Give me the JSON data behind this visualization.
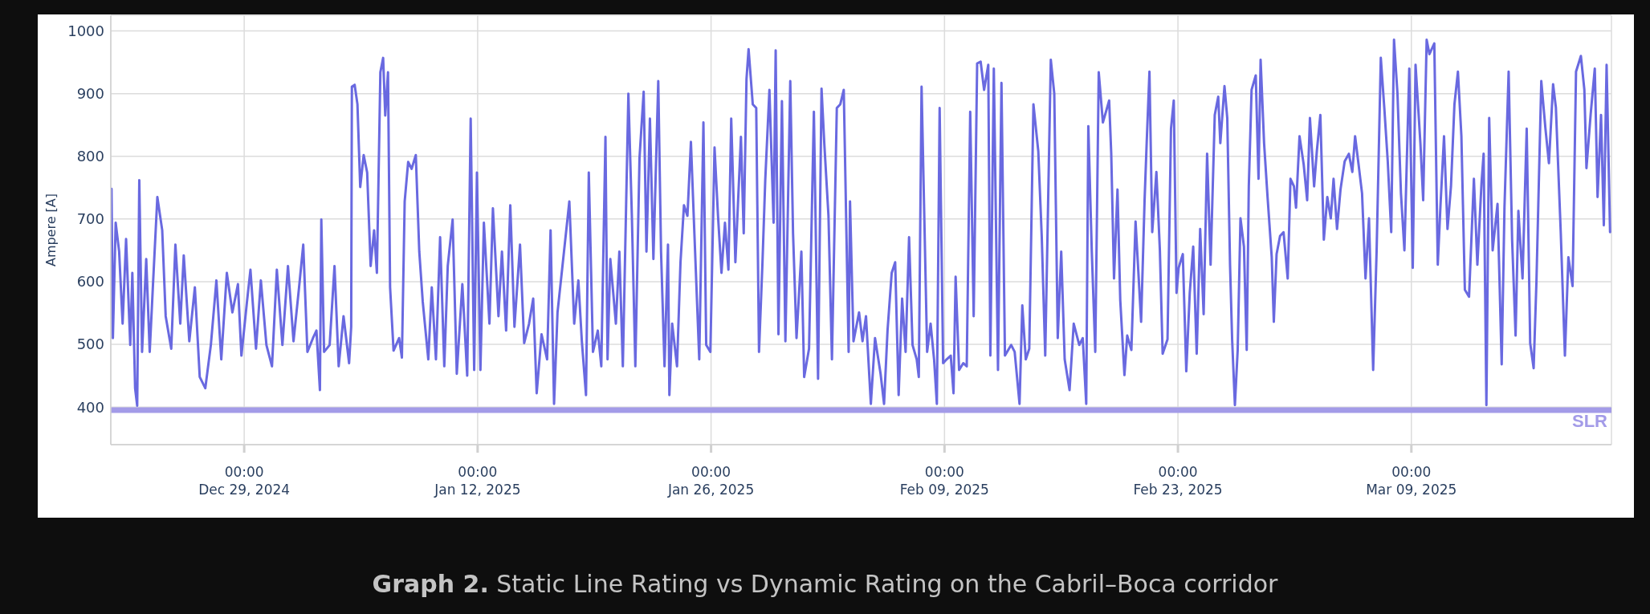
{
  "chart_data": {
    "type": "line",
    "ylabel": "Ampere [A]",
    "color": "#6969e0",
    "line_style": "solid",
    "marker": "none",
    "grid": true,
    "xlim": [
      "2024-12-21",
      "2025-03-21"
    ],
    "xticks": [
      {
        "value": "2024-12-29",
        "label": "00:00\nDec 29, 2024"
      },
      {
        "value": "2025-01-12",
        "label": "00:00\nJan 12, 2025"
      },
      {
        "value": "2025-01-26",
        "label": "00:00\nJan 26, 2025"
      },
      {
        "value": "2025-02-09",
        "label": "00:00\nFeb 09, 2025"
      },
      {
        "value": "2025-02-23",
        "label": "00:00\nFeb 23, 2025"
      },
      {
        "value": "2025-03-09",
        "label": "00:00\nMar 09, 2025"
      }
    ],
    "ylim": [
      340,
      1025
    ],
    "yticks": [
      400,
      500,
      600,
      700,
      800,
      900,
      1000
    ],
    "ref_lines": [
      {
        "axis": "y",
        "value": 395,
        "label": "SLR",
        "color": "#a39be8"
      }
    ],
    "annotations": [
      "Graph 2. Static Line Rating vs Dynamic Rating on the Cabril–Boca corridor"
    ],
    "x": [
      "2024-12-21T01:00",
      "2024-12-21T03:00",
      "2024-12-21T07:00",
      "2024-12-21T12:00",
      "2024-12-21T17:00",
      "2024-12-21T22:00",
      "2024-12-22T04:00",
      "2024-12-22T07:00",
      "2024-12-22T11:00",
      "2024-12-22T14:00",
      "2024-12-22T17:00",
      "2024-12-22T21:00",
      "2024-12-23T03:00",
      "2024-12-23T08:00",
      "2024-12-23T13:00",
      "2024-12-23T19:00",
      "2024-12-24T02:00",
      "2024-12-24T07:00",
      "2024-12-24T15:00",
      "2024-12-24T21:00",
      "2024-12-25T04:00",
      "2024-12-25T09:00",
      "2024-12-25T17:00",
      "2024-12-26T01:00",
      "2024-12-26T08:00",
      "2024-12-26T16:00",
      "2024-12-27T00:00",
      "2024-12-27T08:00",
      "2024-12-27T15:00",
      "2024-12-27T23:00",
      "2024-12-28T07:00",
      "2024-12-28T15:00",
      "2024-12-28T20:00",
      "2024-12-29T04:00",
      "2024-12-29T09:00",
      "2024-12-29T17:00",
      "2024-12-30T00:00",
      "2024-12-30T08:00",
      "2024-12-30T16:00",
      "2024-12-30T23:00",
      "2024-12-31T07:00",
      "2024-12-31T15:00",
      "2024-12-31T23:00",
      "2025-01-01T07:00",
      "2025-01-01T13:00",
      "2025-01-01T19:00",
      "2025-01-02T03:00",
      "2025-01-02T08:00",
      "2025-01-02T13:00",
      "2025-01-02T15:00",
      "2025-01-02T19:00",
      "2025-01-03T03:00",
      "2025-01-03T10:00",
      "2025-01-03T16:00",
      "2025-01-03T23:00",
      "2025-01-04T07:00",
      "2025-01-04T10:00",
      "2025-01-04T11:00",
      "2025-01-04T15:00",
      "2025-01-04T19:00",
      "2025-01-04T23:00",
      "2025-01-05T04:00",
      "2025-01-05T09:00",
      "2025-01-05T14:00",
      "2025-01-05T19:00",
      "2025-01-05T23:00",
      "2025-01-06T04:00",
      "2025-01-06T08:00",
      "2025-01-06T11:00",
      "2025-01-06T15:00",
      "2025-01-06T18:00",
      "2025-01-06T23:00",
      "2025-01-07T07:00",
      "2025-01-07T11:00",
      "2025-01-07T15:00",
      "2025-01-07T20:00",
      "2025-01-08T01:00",
      "2025-01-08T07:00",
      "2025-01-08T12:00",
      "2025-01-08T17:00",
      "2025-01-09T01:00",
      "2025-01-09T06:00",
      "2025-01-09T12:00",
      "2025-01-09T18:00",
      "2025-01-10T00:00",
      "2025-01-10T05:00",
      "2025-01-10T12:00",
      "2025-01-10T18:00",
      "2025-01-11T02:00",
      "2025-01-11T09:00",
      "2025-01-11T14:00",
      "2025-01-11T19:00",
      "2025-01-11T23:00",
      "2025-01-12T04:00",
      "2025-01-12T09:00",
      "2025-01-12T17:00",
      "2025-01-12T22:00",
      "2025-01-13T06:00",
      "2025-01-13T11:00",
      "2025-01-13T17:00",
      "2025-01-13T23:00",
      "2025-01-14T05:00",
      "2025-01-14T13:00",
      "2025-01-14T19:00",
      "2025-01-15T02:00",
      "2025-01-15T08:00",
      "2025-01-15T13:00",
      "2025-01-15T20:00",
      "2025-01-16T04:00",
      "2025-01-16T09:00",
      "2025-01-16T14:00",
      "2025-01-16T19:00",
      "2025-01-17T12:00",
      "2025-01-17T19:00",
      "2025-01-18T01:00",
      "2025-01-18T06:00",
      "2025-01-18T12:00",
      "2025-01-18T16:00",
      "2025-01-18T22:00",
      "2025-01-19T05:00",
      "2025-01-19T10:00",
      "2025-01-19T16:00",
      "2025-01-19T19:00",
      "2025-01-19T23:00",
      "2025-01-20T07:00",
      "2025-01-20T12:00",
      "2025-01-20T17:00",
      "2025-01-21T01:00",
      "2025-01-21T06:00",
      "2025-01-21T11:00",
      "2025-01-21T17:00",
      "2025-01-21T23:00",
      "2025-01-22T03:00",
      "2025-01-22T08:00",
      "2025-01-22T13:00",
      "2025-01-22T20:00",
      "2025-01-23T00:00",
      "2025-01-23T05:00",
      "2025-01-23T10:00",
      "2025-01-23T12:00",
      "2025-01-23T16:00",
      "2025-01-23T23:00",
      "2025-01-24T04:00",
      "2025-01-24T09:00",
      "2025-01-24T14:00",
      "2025-01-24T19:00",
      "2025-01-25T00:00",
      "2025-01-25T07:00",
      "2025-01-25T13:00",
      "2025-01-25T17:00",
      "2025-01-25T23:00",
      "2025-01-26T05:00",
      "2025-01-26T10:00",
      "2025-01-26T15:00",
      "2025-01-26T20:00",
      "2025-01-27T01:00",
      "2025-01-27T05:00",
      "2025-01-27T11:00",
      "2025-01-27T19:00",
      "2025-01-27T23:00",
      "2025-01-28T03:00",
      "2025-01-28T06:00",
      "2025-01-28T12:00",
      "2025-01-28T17:00",
      "2025-01-28T21:00",
      "2025-01-29T02:00",
      "2025-01-29T06:00",
      "2025-01-29T12:00",
      "2025-01-29T18:00",
      "2025-01-29T21:00",
      "2025-01-30T01:00",
      "2025-01-30T06:00",
      "2025-01-30T11:00",
      "2025-01-30T18:00",
      "2025-01-30T22:00",
      "2025-01-31T03:00",
      "2025-01-31T10:00",
      "2025-01-31T14:00",
      "2025-01-31T21:00",
      "2025-02-01T04:00",
      "2025-02-01T10:00",
      "2025-02-01T15:00",
      "2025-02-01T19:00",
      "2025-02-02T01:00",
      "2025-02-02T06:00",
      "2025-02-02T13:00",
      "2025-02-02T18:00",
      "2025-02-02T23:00",
      "2025-02-03T06:00",
      "2025-02-03T08:00",
      "2025-02-03T13:00",
      "2025-02-03T21:00",
      "2025-02-04T02:00",
      "2025-02-04T07:00",
      "2025-02-04T14:00",
      "2025-02-04T20:00",
      "2025-02-05T04:00",
      "2025-02-05T09:00",
      "2025-02-05T14:00",
      "2025-02-05T20:00",
      "2025-02-06T01:00",
      "2025-02-06T06:00",
      "2025-02-06T11:00",
      "2025-02-06T16:00",
      "2025-02-06T21:00",
      "2025-02-07T02:00",
      "2025-02-07T08:00",
      "2025-02-07T11:00",
      "2025-02-07T15:00",
      "2025-02-07T23:00",
      "2025-02-08T04:00",
      "2025-02-08T09:00",
      "2025-02-08T13:00",
      "2025-02-08T17:00",
      "2025-02-08T22:00",
      "2025-02-09T03:00",
      "2025-02-09T09:00",
      "2025-02-09T13:00",
      "2025-02-09T16:00",
      "2025-02-09T21:00",
      "2025-02-10T03:00",
      "2025-02-10T08:00",
      "2025-02-10T13:00",
      "2025-02-10T18:00",
      "2025-02-10T23:00",
      "2025-02-11T04:00",
      "2025-02-11T09:00",
      "2025-02-11T15:00",
      "2025-02-11T18:00",
      "2025-02-11T23:00",
      "2025-02-12T05:00",
      "2025-02-12T10:00",
      "2025-02-12T15:00",
      "2025-02-13T00:00",
      "2025-02-13T05:00",
      "2025-02-13T12:00",
      "2025-02-13T16:00",
      "2025-02-13T21:00",
      "2025-02-14T02:00",
      "2025-02-14T08:00",
      "2025-02-14T15:00",
      "2025-02-14T20:00",
      "2025-02-15T01:00",
      "2025-02-15T09:00",
      "2025-02-15T14:00",
      "2025-02-15T19:00",
      "2025-02-16T00:00",
      "2025-02-16T05:00",
      "2025-02-16T12:00",
      "2025-02-16T18:00",
      "2025-02-17T02:00",
      "2025-02-17T07:00",
      "2025-02-17T12:00",
      "2025-02-17T15:00",
      "2025-02-17T20:00",
      "2025-02-18T01:00",
      "2025-02-18T06:00",
      "2025-02-18T12:00",
      "2025-02-18T21:00",
      "2025-02-19T00:00",
      "2025-02-19T04:00",
      "2025-02-19T09:00",
      "2025-02-19T13:00",
      "2025-02-19T19:00",
      "2025-02-19T23:00",
      "2025-02-20T05:00",
      "2025-02-20T11:00",
      "2025-02-20T15:00",
      "2025-02-20T19:00",
      "2025-02-21T00:00",
      "2025-02-21T03:00",
      "2025-02-21T07:00",
      "2025-02-21T11:00",
      "2025-02-21T17:00",
      "2025-02-21T22:00",
      "2025-02-22T02:00",
      "2025-02-22T09:00",
      "2025-02-22T14:00",
      "2025-02-22T18:00",
      "2025-02-22T22:00",
      "2025-02-23T01:00",
      "2025-02-23T07:00",
      "2025-02-23T12:00",
      "2025-02-23T17:00",
      "2025-02-23T22:00",
      "2025-02-24T03:00",
      "2025-02-24T08:00",
      "2025-02-24T13:00",
      "2025-02-24T18:00",
      "2025-02-24T23:00",
      "2025-02-25T05:00",
      "2025-02-25T10:00",
      "2025-02-25T13:00",
      "2025-02-25T19:00",
      "2025-02-25T23:00",
      "2025-02-26T03:00",
      "2025-02-26T06:00",
      "2025-02-26T10:00",
      "2025-02-26T14:00",
      "2025-02-26T18:00",
      "2025-02-26T23:00",
      "2025-02-27T03:00",
      "2025-02-27T06:00",
      "2025-02-27T10:00",
      "2025-02-27T16:00",
      "2025-02-27T20:00",
      "2025-02-27T23:00",
      "2025-02-28T04:00",
      "2025-02-28T09:00",
      "2025-02-28T15:00",
      "2025-02-28T18:00",
      "2025-02-28T22:00",
      "2025-03-01T03:00",
      "2025-03-01T08:00",
      "2025-03-01T14:00",
      "2025-03-01T18:00",
      "2025-03-01T23:00",
      "2025-03-02T02:00",
      "2025-03-02T07:00",
      "2025-03-02T13:00",
      "2025-03-02T18:00",
      "2025-03-02T22:00",
      "2025-03-03T04:00",
      "2025-03-03T08:00",
      "2025-03-03T13:00",
      "2025-03-03T18:00",
      "2025-03-03T23:00",
      "2025-03-04T04:00",
      "2025-03-04T08:00",
      "2025-03-04T13:00",
      "2025-03-04T18:00",
      "2025-03-05T00:00",
      "2025-03-05T06:00",
      "2025-03-05T11:00",
      "2025-03-05T15:00",
      "2025-03-05T20:00",
      "2025-03-06T01:00",
      "2025-03-06T06:00",
      "2025-03-06T11:00",
      "2025-03-06T17:00",
      "2025-03-06T22:00",
      "2025-03-07T04:00",
      "2025-03-07T09:00",
      "2025-03-07T14:00",
      "2025-03-07T19:00",
      "2025-03-07T23:00",
      "2025-03-08T04:00",
      "2025-03-08T09:00",
      "2025-03-08T14:00",
      "2025-03-08T21:00",
      "2025-03-09T02:00",
      "2025-03-09T06:00",
      "2025-03-09T13:00",
      "2025-03-09T17:00",
      "2025-03-09T22:00",
      "2025-03-10T02:00",
      "2025-03-10T09:00",
      "2025-03-10T14:00",
      "2025-03-10T18:00",
      "2025-03-10T23:00",
      "2025-03-11T04:00",
      "2025-03-11T09:00",
      "2025-03-11T14:00",
      "2025-03-11T19:00",
      "2025-03-12T00:00",
      "2025-03-12T05:00",
      "2025-03-12T11:00",
      "2025-03-12T18:00",
      "2025-03-12T23:00",
      "2025-03-13T05:00",
      "2025-03-13T08:00",
      "2025-03-13T12:00",
      "2025-03-13T16:00",
      "2025-03-13T21:00",
      "2025-03-14T04:00",
      "2025-03-14T10:00",
      "2025-03-14T14:00",
      "2025-03-14T20:00",
      "2025-03-15T01:00",
      "2025-03-15T06:00",
      "2025-03-15T10:00",
      "2025-03-15T16:00",
      "2025-03-15T22:00",
      "2025-03-16T03:00",
      "2025-03-16T08:00",
      "2025-03-16T12:00",
      "2025-03-16T19:00",
      "2025-03-17T01:00",
      "2025-03-17T06:00",
      "2025-03-17T12:00",
      "2025-03-17T16:00",
      "2025-03-17T23:00",
      "2025-03-18T05:00",
      "2025-03-18T10:00",
      "2025-03-18T16:00",
      "2025-03-18T21:00",
      "2025-03-19T04:00",
      "2025-03-19T09:00",
      "2025-03-19T12:00",
      "2025-03-19T18:00",
      "2025-03-20T00:00",
      "2025-03-20T04:00",
      "2025-03-20T09:00",
      "2025-03-20T13:00",
      "2025-03-20T17:00",
      "2025-03-20T22:00"
    ],
    "values": [
      748,
      510,
      694,
      648,
      533,
      668,
      499,
      614,
      430,
      402,
      762,
      488,
      636,
      488,
      602,
      735,
      682,
      545,
      493,
      659,
      533,
      642,
      505,
      591,
      448,
      430,
      499,
      602,
      476,
      614,
      551,
      596,
      482,
      568,
      619,
      493,
      602,
      499,
      465,
      619,
      499,
      625,
      505,
      591,
      659,
      488,
      510,
      522,
      427,
      699,
      488,
      499,
      625,
      465,
      545,
      470,
      528,
      911,
      914,
      883,
      751,
      802,
      774,
      625,
      682,
      614,
      934,
      957,
      865,
      934,
      591,
      490,
      510,
      479,
      728,
      791,
      780,
      802,
      648,
      568,
      476,
      591,
      476,
      671,
      465,
      625,
      699,
      453,
      596,
      450,
      860,
      459,
      774,
      459,
      694,
      533,
      717,
      545,
      648,
      522,
      722,
      528,
      659,
      502,
      533,
      573,
      422,
      516,
      476,
      682,
      405,
      551,
      728,
      533,
      602,
      505,
      419,
      774,
      488,
      522,
      465,
      831,
      476,
      636,
      533,
      648,
      465,
      900,
      705,
      465,
      797,
      903,
      648,
      860,
      636,
      920,
      648,
      465,
      659,
      419,
      533,
      465,
      631,
      722,
      705,
      823,
      677,
      476,
      854,
      499,
      488,
      814,
      705,
      614,
      694,
      619,
      860,
      631,
      831,
      677,
      923,
      971,
      883,
      877,
      488,
      631,
      762,
      906,
      694,
      969,
      516,
      888,
      505,
      920,
      677,
      510,
      648,
      448,
      493,
      871,
      445,
      908,
      820,
      705,
      476,
      877,
      883,
      906,
      488,
      728,
      505,
      551,
      505,
      545,
      405,
      510,
      453,
      405,
      522,
      614,
      631,
      419,
      573,
      488,
      671,
      499,
      476,
      448,
      911,
      488,
      533,
      476,
      405,
      877,
      470,
      476,
      482,
      422,
      608,
      459,
      470,
      465,
      871,
      545,
      948,
      951,
      906,
      946,
      482,
      940,
      459,
      917,
      482,
      499,
      488,
      405,
      562,
      476,
      493,
      883,
      808,
      671,
      482,
      954,
      900,
      510,
      648,
      476,
      427,
      533,
      499,
      510,
      405,
      848,
      648,
      488,
      934,
      854,
      889,
      804,
      605,
      747,
      570,
      451,
      514,
      491,
      696,
      616,
      536,
      730,
      821,
      935,
      679,
      775,
      650,
      485,
      508,
      844,
      889,
      582,
      622,
      644,
      457,
      582,
      656,
      485,
      684,
      548,
      804,
      627,
      866,
      895,
      821,
      912,
      861,
      627,
      508,
      403,
      491,
      701,
      656,
      491,
      752,
      906,
      929,
      764,
      954,
      821,
      735,
      639,
      536,
      644,
      673,
      679,
      605,
      764,
      752,
      718,
      832,
      787,
      730,
      861,
      752,
      809,
      866,
      667,
      735,
      701,
      764,
      684,
      747,
      792,
      804,
      775,
      832,
      787,
      741,
      605,
      701,
      459,
      650,
      957,
      878,
      792,
      679,
      986,
      900,
      741,
      650,
      940,
      622,
      946,
      821,
      730,
      986,
      963,
      980,
      627,
      724,
      832,
      684,
      752,
      883,
      935,
      832,
      587,
      576,
      764,
      627,
      758,
      804,
      403,
      861,
      650,
      724,
      468,
      718,
      935,
      667,
      514,
      713,
      605,
      844,
      502,
      462,
      599,
      920,
      844,
      789,
      915,
      878,
      679,
      482,
      639,
      593,
      935,
      960,
      906,
      781,
      866,
      940,
      735,
      866,
      690,
      946,
      679
    ]
  }
}
